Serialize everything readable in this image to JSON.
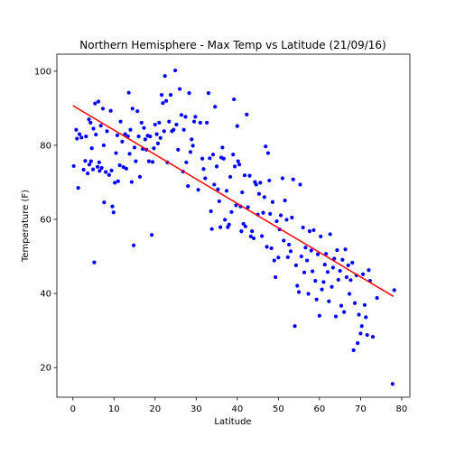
{
  "chart_data": {
    "type": "scatter",
    "title": "Northern Hemisphere - Max Temp vs Latitude (21/09/16)",
    "xlabel": "Latitude",
    "ylabel": "Temperature (F)",
    "xlim": [
      -3.9,
      82
    ],
    "ylim": [
      12,
      104.6
    ],
    "xticks": [
      0,
      10,
      20,
      30,
      40,
      50,
      60,
      70,
      80
    ],
    "yticks": [
      20,
      40,
      60,
      80,
      100
    ],
    "grid": false,
    "legend": "none",
    "point_color": "#0000ff",
    "line_color": "#ff0000",
    "regression": {
      "slope": -0.66,
      "intercept": 90.7,
      "x_range": [
        0,
        78
      ]
    },
    "points": [
      [
        0.2,
        74.4
      ],
      [
        0.8,
        84.2
      ],
      [
        1.0,
        81.8
      ],
      [
        1.3,
        68.5
      ],
      [
        1.6,
        83.0
      ],
      [
        2.1,
        82.1
      ],
      [
        2.6,
        73.4
      ],
      [
        3.0,
        75.8
      ],
      [
        3.2,
        82.4
      ],
      [
        3.6,
        72.4
      ],
      [
        3.9,
        87.0
      ],
      [
        4.0,
        74.8
      ],
      [
        4.3,
        86.1
      ],
      [
        4.4,
        75.7
      ],
      [
        4.6,
        79.2
      ],
      [
        4.9,
        73.5
      ],
      [
        5.0,
        84.5
      ],
      [
        5.2,
        48.4
      ],
      [
        5.4,
        91.3
      ],
      [
        5.6,
        82.9
      ],
      [
        6.0,
        74.2
      ],
      [
        6.2,
        91.8
      ],
      [
        6.4,
        75.4
      ],
      [
        6.5,
        73.1
      ],
      [
        6.8,
        85.3
      ],
      [
        7.0,
        73.9
      ],
      [
        7.3,
        89.9
      ],
      [
        7.5,
        80.0
      ],
      [
        7.6,
        64.6
      ],
      [
        8.0,
        72.8
      ],
      [
        8.3,
        83.8
      ],
      [
        8.8,
        72.0
      ],
      [
        9.2,
        89.3
      ],
      [
        9.4,
        73.2
      ],
      [
        9.6,
        63.5
      ],
      [
        9.9,
        61.9
      ],
      [
        10.2,
        69.9
      ],
      [
        10.5,
        77.9
      ],
      [
        10.8,
        82.7
      ],
      [
        11.0,
        70.3
      ],
      [
        11.4,
        74.6
      ],
      [
        11.6,
        86.4
      ],
      [
        12.0,
        81.0
      ],
      [
        12.3,
        74.1
      ],
      [
        12.7,
        83.0
      ],
      [
        13.0,
        73.7
      ],
      [
        13.4,
        82.4
      ],
      [
        13.6,
        94.2
      ],
      [
        13.8,
        77.7
      ],
      [
        14.0,
        84.2
      ],
      [
        14.3,
        70.1
      ],
      [
        14.5,
        89.9
      ],
      [
        14.8,
        53.0
      ],
      [
        15.0,
        79.4
      ],
      [
        15.3,
        75.7
      ],
      [
        15.7,
        89.2
      ],
      [
        16.0,
        82.4
      ],
      [
        16.3,
        71.5
      ],
      [
        16.7,
        86.1
      ],
      [
        17.0,
        79.0
      ],
      [
        17.3,
        84.7
      ],
      [
        17.6,
        81.6
      ],
      [
        17.9,
        78.8
      ],
      [
        18.2,
        82.6
      ],
      [
        18.5,
        75.7
      ],
      [
        18.8,
        82.4
      ],
      [
        19.2,
        55.8
      ],
      [
        19.4,
        75.5
      ],
      [
        19.7,
        79.2
      ],
      [
        20.0,
        85.6
      ],
      [
        20.4,
        83.0
      ],
      [
        20.7,
        80.5
      ],
      [
        21.0,
        86.1
      ],
      [
        21.3,
        82.0
      ],
      [
        21.6,
        93.6
      ],
      [
        21.9,
        91.4
      ],
      [
        22.2,
        83.8
      ],
      [
        22.4,
        98.7
      ],
      [
        22.7,
        92.0
      ],
      [
        23.0,
        75.4
      ],
      [
        23.4,
        86.4
      ],
      [
        23.8,
        93.6
      ],
      [
        24.1,
        83.8
      ],
      [
        24.5,
        84.2
      ],
      [
        24.9,
        100.2
      ],
      [
        25.2,
        85.6
      ],
      [
        25.6,
        78.8
      ],
      [
        26.0,
        95.2
      ],
      [
        26.4,
        88.2
      ],
      [
        26.8,
        72.9
      ],
      [
        27.0,
        84.2
      ],
      [
        27.4,
        87.7
      ],
      [
        27.6,
        75.4
      ],
      [
        28.0,
        69.0
      ],
      [
        28.3,
        94.1
      ],
      [
        28.6,
        78.2
      ],
      [
        28.9,
        81.6
      ],
      [
        29.2,
        79.9
      ],
      [
        29.5,
        86.4
      ],
      [
        29.8,
        87.7
      ],
      [
        30.5,
        68.0
      ],
      [
        31.0,
        86.1
      ],
      [
        31.5,
        76.4
      ],
      [
        31.8,
        73.6
      ],
      [
        32.2,
        71.1
      ],
      [
        32.6,
        86.1
      ],
      [
        33.0,
        94.1
      ],
      [
        33.3,
        76.5
      ],
      [
        33.6,
        62.2
      ],
      [
        33.8,
        57.4
      ],
      [
        34.1,
        77.5
      ],
      [
        34.4,
        69.4
      ],
      [
        34.6,
        90.4
      ],
      [
        35.0,
        74.3
      ],
      [
        35.3,
        68.1
      ],
      [
        35.6,
        64.9
      ],
      [
        35.9,
        57.9
      ],
      [
        36.1,
        76.7
      ],
      [
        36.4,
        79.4
      ],
      [
        36.7,
        76.4
      ],
      [
        37.0,
        59.9
      ],
      [
        37.4,
        67.7
      ],
      [
        37.7,
        57.9
      ],
      [
        38.0,
        58.6
      ],
      [
        38.3,
        71.5
      ],
      [
        38.6,
        62.0
      ],
      [
        39.0,
        77.5
      ],
      [
        39.2,
        92.4
      ],
      [
        39.4,
        74.3
      ],
      [
        39.7,
        63.8
      ],
      [
        40.0,
        85.2
      ],
      [
        40.2,
        75.7
      ],
      [
        40.5,
        74.8
      ],
      [
        40.8,
        63.5
      ],
      [
        41.0,
        56.8
      ],
      [
        41.2,
        67.3
      ],
      [
        41.5,
        58.8
      ],
      [
        41.8,
        71.9
      ],
      [
        42.0,
        58.1
      ],
      [
        42.3,
        88.3
      ],
      [
        42.6,
        63.3
      ],
      [
        43.0,
        71.8
      ],
      [
        43.3,
        55.4
      ],
      [
        43.6,
        56.8
      ],
      [
        44.0,
        54.9
      ],
      [
        44.3,
        70.1
      ],
      [
        44.6,
        69.4
      ],
      [
        45.0,
        61.3
      ],
      [
        45.3,
        66.9
      ],
      [
        45.6,
        69.9
      ],
      [
        46.0,
        55.5
      ],
      [
        46.3,
        61.8
      ],
      [
        46.6,
        66.0
      ],
      [
        46.9,
        79.7
      ],
      [
        47.2,
        52.6
      ],
      [
        47.5,
        77.9
      ],
      [
        47.8,
        70.5
      ],
      [
        48.0,
        61.5
      ],
      [
        48.3,
        52.2
      ],
      [
        48.6,
        64.7
      ],
      [
        49.0,
        48.9
      ],
      [
        49.3,
        44.4
      ],
      [
        49.6,
        59.5
      ],
      [
        50.0,
        49.7
      ],
      [
        50.3,
        57.3
      ],
      [
        50.6,
        61.1
      ],
      [
        51.0,
        71.1
      ],
      [
        51.3,
        54.3
      ],
      [
        51.6,
        65.1
      ],
      [
        52.0,
        59.9
      ],
      [
        52.3,
        49.8
      ],
      [
        52.6,
        53.2
      ],
      [
        53.0,
        51.4
      ],
      [
        53.3,
        60.5
      ],
      [
        53.6,
        70.8
      ],
      [
        54.0,
        31.2
      ],
      [
        54.3,
        47.6
      ],
      [
        54.6,
        42.1
      ],
      [
        55.0,
        40.4
      ],
      [
        55.3,
        69.4
      ],
      [
        55.6,
        50.0
      ],
      [
        56.0,
        57.8
      ],
      [
        56.3,
        45.7
      ],
      [
        56.6,
        52.4
      ],
      [
        57.0,
        48.9
      ],
      [
        57.3,
        39.9
      ],
      [
        57.6,
        56.8
      ],
      [
        58.0,
        51.6
      ],
      [
        58.3,
        46.0
      ],
      [
        58.6,
        57.1
      ],
      [
        59.0,
        43.4
      ],
      [
        59.3,
        38.4
      ],
      [
        59.6,
        50.6
      ],
      [
        60.0,
        34.0
      ],
      [
        60.3,
        55.4
      ],
      [
        60.6,
        41.1
      ],
      [
        61.0,
        43.1
      ],
      [
        61.3,
        47.8
      ],
      [
        61.6,
        50.7
      ],
      [
        62.0,
        45.8
      ],
      [
        62.3,
        37.9
      ],
      [
        62.6,
        56.0
      ],
      [
        63.0,
        41.8
      ],
      [
        63.3,
        47.0
      ],
      [
        63.6,
        49.4
      ],
      [
        64.0,
        33.8
      ],
      [
        64.3,
        51.7
      ],
      [
        64.6,
        43.7
      ],
      [
        65.0,
        46.1
      ],
      [
        65.3,
        36.7
      ],
      [
        65.6,
        49.1
      ],
      [
        66.0,
        35.0
      ],
      [
        66.3,
        51.9
      ],
      [
        66.6,
        44.4
      ],
      [
        67.0,
        47.6
      ],
      [
        67.3,
        39.9
      ],
      [
        67.6,
        43.6
      ],
      [
        68.0,
        48.3
      ],
      [
        68.3,
        24.7
      ],
      [
        68.6,
        37.4
      ],
      [
        69.0,
        44.9
      ],
      [
        69.3,
        26.6
      ],
      [
        69.6,
        34.3
      ],
      [
        70.0,
        29.2
      ],
      [
        70.3,
        31.2
      ],
      [
        70.6,
        45.2
      ],
      [
        71.0,
        36.9
      ],
      [
        71.3,
        33.6
      ],
      [
        71.6,
        28.8
      ],
      [
        72.0,
        46.3
      ],
      [
        72.3,
        43.4
      ],
      [
        73.0,
        28.3
      ],
      [
        74.0,
        38.8
      ],
      [
        77.8,
        15.6
      ],
      [
        78.2,
        40.9
      ]
    ]
  }
}
